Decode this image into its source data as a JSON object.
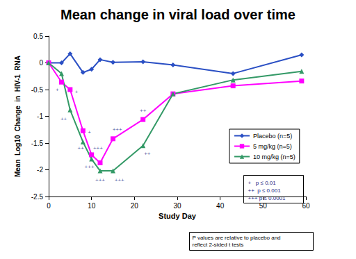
{
  "chart_data": {
    "type": "line",
    "title": "Mean change in viral load over time",
    "x_label": "Study Day",
    "y_label": "Mean  Log10  Change  in  HIV-1  RNA",
    "xlim": [
      0,
      60
    ],
    "xticks": [
      0,
      10,
      20,
      30,
      40,
      50,
      60
    ],
    "ylim": [
      -2.5,
      0.5
    ],
    "yticks": [
      -2.5,
      -2,
      -1.5,
      -1,
      -0.5,
      0,
      0.5
    ],
    "grid": false,
    "legend": "right",
    "series": [
      {
        "name": "Placebo (n=5)",
        "color": "#2a4fc4",
        "marker": "diamond",
        "x": [
          0,
          3,
          5,
          8,
          10,
          12,
          15,
          22,
          29,
          43,
          59
        ],
        "values": [
          0,
          0.0,
          0.17,
          -0.18,
          -0.12,
          0.06,
          0.01,
          0.02,
          -0.04,
          -0.2,
          0.15
        ]
      },
      {
        "name": "5 mg/kg (n=5)",
        "color": "#ff00ff",
        "marker": "square",
        "x": [
          0,
          3,
          5,
          8,
          10,
          12,
          15,
          22,
          29,
          43,
          59
        ],
        "values": [
          0,
          -0.36,
          -0.5,
          -1.27,
          -1.72,
          -1.87,
          -1.42,
          -1.06,
          -0.58,
          -0.43,
          -0.34
        ]
      },
      {
        "name": "10 mg/kg (n=5)",
        "color": "#339966",
        "marker": "triangle",
        "x": [
          0,
          3,
          5,
          8,
          10,
          12,
          15,
          22,
          29,
          43,
          59
        ],
        "values": [
          0,
          -0.2,
          -0.88,
          -1.48,
          -1.8,
          -2.02,
          -2.02,
          -1.55,
          -0.58,
          -0.32,
          -0.16
        ]
      }
    ],
    "annotations": [
      {
        "text": "+",
        "x": 2,
        "y": -0.5
      },
      {
        "text": "+",
        "x": 6.5,
        "y": -0.55
      },
      {
        "text": "++",
        "x": 3.5,
        "y": -1.05
      },
      {
        "text": "+",
        "x": 9.5,
        "y": -1.3
      },
      {
        "text": "++",
        "x": 7.5,
        "y": -1.6
      },
      {
        "text": "+++",
        "x": 11.5,
        "y": -1.6
      },
      {
        "text": "+++",
        "x": 9.5,
        "y": -1.95
      },
      {
        "text": "+++",
        "x": 12,
        "y": -2.2
      },
      {
        "text": "+++",
        "x": 16,
        "y": -1.25
      },
      {
        "text": "+++",
        "x": 16.5,
        "y": -2.2
      },
      {
        "text": "++",
        "x": 22,
        "y": -0.9
      },
      {
        "text": "++",
        "x": 23,
        "y": -1.7
      }
    ],
    "significance_key": [
      "+   p ≤ 0.01",
      "++  p ≤ 0.001",
      "+++ p ≤ 0.0001"
    ],
    "note": [
      "P values are relative to placebo and",
      "reflect 2-sided t tests"
    ]
  }
}
